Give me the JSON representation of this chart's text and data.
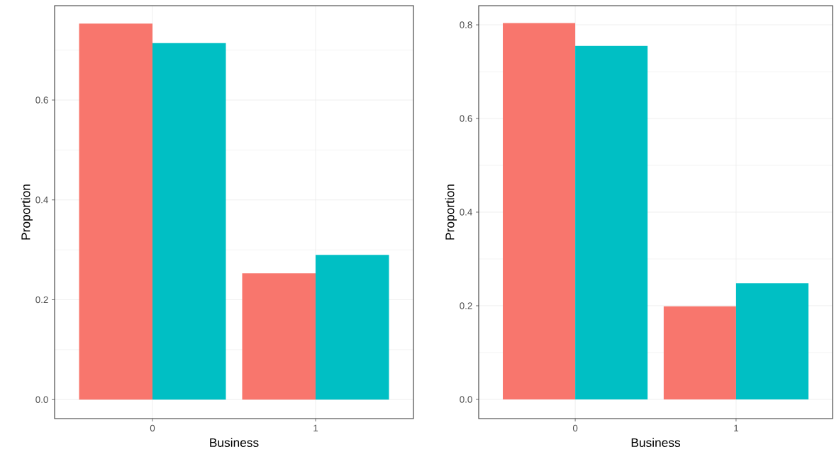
{
  "chart_data": [
    {
      "type": "bar",
      "xlabel": "Business",
      "ylabel": "Proportion",
      "categories": [
        "0",
        "1"
      ],
      "ylim": [
        -0.038,
        0.789
      ],
      "yticks": [
        {
          "value": 0,
          "label": "0.0"
        },
        0.2,
        0.4,
        0.6
      ],
      "grid": true,
      "series": [
        {
          "color": "#f8766d",
          "values": [
            0.753,
            0.253
          ]
        },
        {
          "color": "#00bfc4",
          "values": [
            0.714,
            0.29
          ]
        }
      ]
    },
    {
      "type": "bar",
      "xlabel": "Business",
      "ylabel": "Proportion",
      "categories": [
        "0",
        "1"
      ],
      "ylim": [
        -0.041,
        0.841
      ],
      "yticks": [
        {
          "value": 0,
          "label": "0.0"
        },
        0.2,
        0.4,
        0.6,
        0.8
      ],
      "grid": true,
      "series": [
        {
          "color": "#f8766d",
          "values": [
            0.804,
            0.199
          ]
        },
        {
          "color": "#00bfc4",
          "values": [
            0.755,
            0.248
          ]
        }
      ]
    }
  ]
}
